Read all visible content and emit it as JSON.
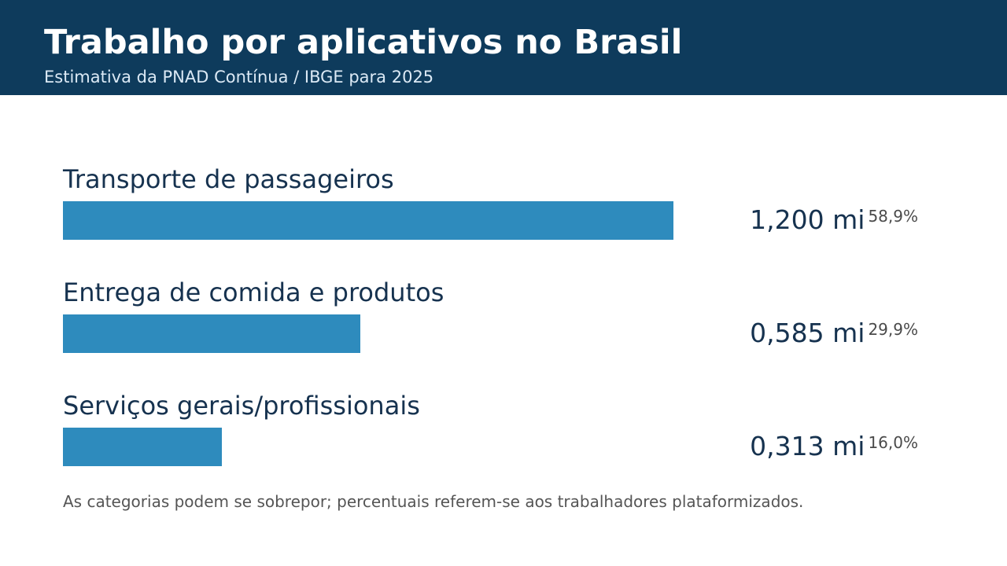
{
  "header": {
    "title": "Trabalho por aplicativos no Brasil",
    "subtitle": "Estimativa da PNAD Contínua / IBGE para 2025"
  },
  "chart_data": {
    "type": "bar",
    "orientation": "horizontal",
    "categories": [
      "Transporte de passageiros",
      "Entrega de comida e produtos",
      "Serviços gerais/profissionais"
    ],
    "values": [
      1.2,
      0.585,
      0.313
    ],
    "value_labels": [
      "1,200 mi",
      "0,585 mi",
      "0,313 mi"
    ],
    "percent_labels": [
      "58,9%",
      "29,9%",
      "16,0%"
    ],
    "xlim": [
      0,
      1.2
    ],
    "grid": false,
    "bar_color": "#2e8bbd",
    "title": "Trabalho por aplicativos no Brasil",
    "subtitle": "Estimativa da PNAD Contínua / IBGE para 2025"
  },
  "footnote": "As categorias podem se sobrepor; percentuais referem-se aos trabalhadores plataformizados.",
  "colors": {
    "header_bg": "#0e3b5c",
    "bar": "#2e8bbd",
    "label_text": "#16324f"
  }
}
